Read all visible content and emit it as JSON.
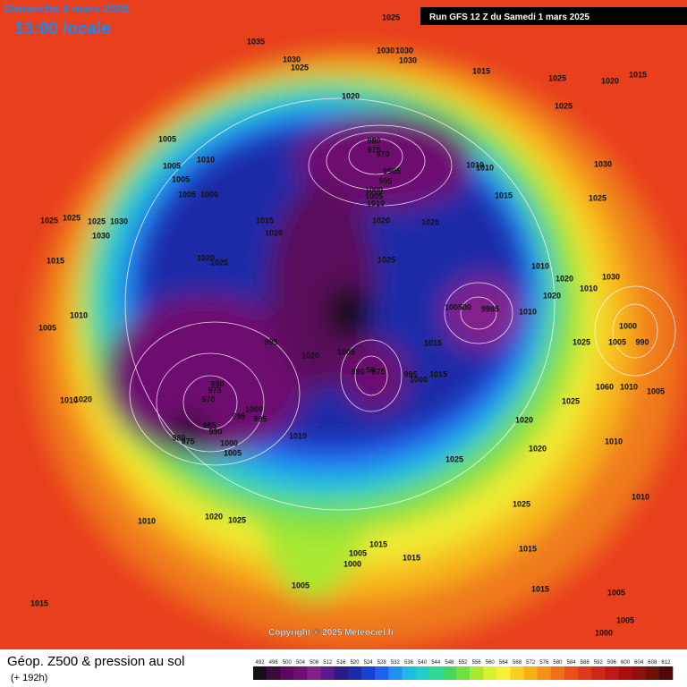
{
  "header": {
    "date": "Dimanche 9 mars 2025",
    "time": "13:00 locale",
    "run": "Run GFS 12 Z du Samedi 1 mars 2025"
  },
  "map": {
    "copyright": "Copyright © 2025 Meteociel.fr",
    "pressure_labels": [
      "1025",
      "1035",
      "1030",
      "1025",
      "1030",
      "1030",
      "1030",
      "1015",
      "1025",
      "1020",
      "1015",
      "1020",
      "1025",
      "980",
      "975",
      "970",
      "1005",
      "1010",
      "1005",
      "1005",
      "1005",
      "1000",
      "9905",
      "995",
      "1000",
      "1005",
      "1010",
      "1010",
      "1010",
      "1030",
      "1015",
      "1025",
      "1025",
      "1025",
      "1025",
      "1030",
      "1030",
      "1015",
      "1020",
      "1020",
      "1025",
      "1015",
      "1020",
      "1025",
      "1025",
      "1010",
      "1030",
      "1020",
      "1020",
      "1010",
      "1010",
      "1005",
      "100500",
      "9985",
      "1010",
      "1000",
      "1005",
      "990",
      "995",
      "1020",
      "1015",
      "1025",
      "1005",
      "990",
      "50",
      "975",
      "995",
      "1015",
      "1000",
      "980",
      "975",
      "970",
      "1060",
      "1010",
      "1005",
      "1020",
      "1010",
      "1025",
      "1000",
      "995",
      "995",
      "985",
      "990",
      "1020",
      "980",
      "975",
      "1010",
      "1000",
      "1005",
      "1010",
      "1020",
      "1025",
      "1010",
      "1025",
      "1010",
      "1020",
      "1025",
      "1015",
      "1005",
      "1000",
      "1015",
      "1015",
      "1005",
      "1015",
      "1005",
      "1015",
      "1005",
      "1000"
    ]
  },
  "footer": {
    "title": "Géop. Z500 & pression au sol",
    "subtitle": "(+ 192h)",
    "scale": {
      "levels": [
        492,
        496,
        500,
        504,
        508,
        512,
        516,
        520,
        524,
        528,
        532,
        536,
        540,
        544,
        548,
        552,
        556,
        560,
        564,
        568,
        572,
        576,
        580,
        584,
        588,
        592,
        596,
        600,
        604,
        608,
        612
      ],
      "colors": [
        "#1a0a1a",
        "#3a0a3a",
        "#5a0a5a",
        "#6e1070",
        "#82208a",
        "#5a1a8a",
        "#2a1a8a",
        "#1a2aa8",
        "#1a40d0",
        "#2060f0",
        "#2090f0",
        "#20b8e8",
        "#20d0c8",
        "#30d898",
        "#40d860",
        "#70e040",
        "#a8e830",
        "#d8f030",
        "#f8f030",
        "#f8d020",
        "#f8b018",
        "#f89018",
        "#f07018",
        "#e85018",
        "#e03818",
        "#d02818",
        "#c01818",
        "#a81010",
        "#901010",
        "#701008",
        "#500808"
      ]
    }
  }
}
